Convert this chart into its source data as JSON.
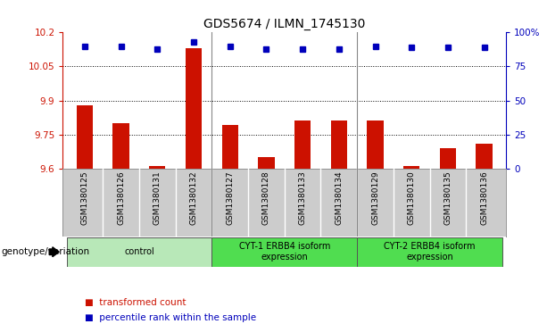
{
  "title": "GDS5674 / ILMN_1745130",
  "samples": [
    "GSM1380125",
    "GSM1380126",
    "GSM1380131",
    "GSM1380132",
    "GSM1380127",
    "GSM1380128",
    "GSM1380133",
    "GSM1380134",
    "GSM1380129",
    "GSM1380130",
    "GSM1380135",
    "GSM1380136"
  ],
  "red_values": [
    9.88,
    9.8,
    9.61,
    10.13,
    9.79,
    9.65,
    9.81,
    9.81,
    9.81,
    9.61,
    9.69,
    9.71
  ],
  "blue_values": [
    90,
    90,
    88,
    93,
    90,
    88,
    88,
    88,
    90,
    89,
    89,
    89
  ],
  "ylim_left": [
    9.6,
    10.2
  ],
  "ylim_right": [
    0,
    100
  ],
  "yticks_left": [
    9.6,
    9.75,
    9.9,
    10.05,
    10.2
  ],
  "yticks_right": [
    0,
    25,
    50,
    75,
    100
  ],
  "ytick_labels_left": [
    "9.6",
    "9.75",
    "9.9",
    "10.05",
    "10.2"
  ],
  "ytick_labels_right": [
    "0",
    "25",
    "50",
    "75",
    "100%"
  ],
  "hlines": [
    9.75,
    9.9,
    10.05
  ],
  "groups": [
    {
      "label": "control",
      "start": 0,
      "end": 4,
      "color": "#b8e8b8"
    },
    {
      "label": "CYT-1 ERBB4 isoform\nexpression",
      "start": 4,
      "end": 8,
      "color": "#50dd50"
    },
    {
      "label": "CYT-2 ERBB4 isoform\nexpression",
      "start": 8,
      "end": 12,
      "color": "#50dd50"
    }
  ],
  "genotype_label": "genotype/variation",
  "legend_red": "transformed count",
  "legend_blue": "percentile rank within the sample",
  "bar_color": "#cc1100",
  "dot_color": "#0000bb",
  "bar_bottom": 9.6,
  "tick_label_area_color": "#cccccc",
  "group_dividers": [
    3.5,
    7.5
  ]
}
